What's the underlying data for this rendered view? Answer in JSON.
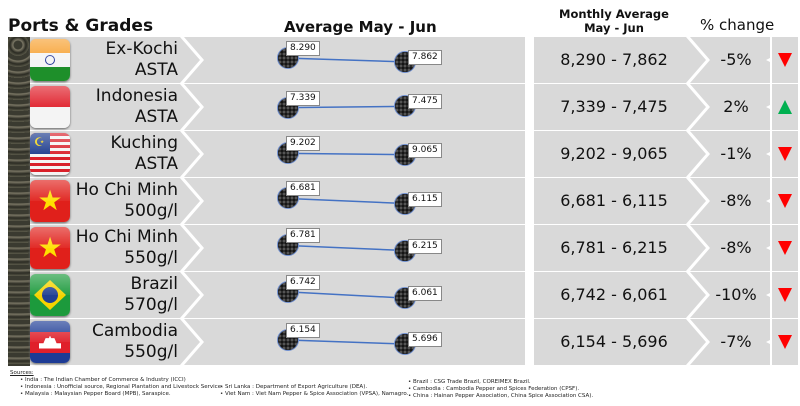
{
  "headers": {
    "ports": "Ports & Grades",
    "average": "Average May - Jun",
    "monthly_l1": "Monthly Average",
    "monthly_l2": "May - Jun",
    "pct": "% change"
  },
  "colors": {
    "down": "#ff0000",
    "up": "#00b050",
    "line": "#4472c4",
    "panel": "#d9d9d9"
  },
  "rows": [
    {
      "name": "Ex-Kochi",
      "grade": "ASTA",
      "flag": "india",
      "may": "8.290",
      "jun": "7.862",
      "mayv": 8290,
      "junv": 7862,
      "range": "8,290 - 7,862",
      "pct": "-5%",
      "trend": "down"
    },
    {
      "name": "Indonesia",
      "grade": "ASTA",
      "flag": "indonesia",
      "may": "7.339",
      "jun": "7.475",
      "mayv": 7339,
      "junv": 7475,
      "range": "7,339 - 7,475",
      "pct": "2%",
      "trend": "up"
    },
    {
      "name": "Kuching",
      "grade": "ASTA",
      "flag": "malaysia",
      "may": "9.202",
      "jun": "9.065",
      "mayv": 9202,
      "junv": 9065,
      "range": "9,202 - 9,065",
      "pct": "-1%",
      "trend": "down"
    },
    {
      "name": "Ho Chi Minh",
      "grade": "500g/l",
      "flag": "vietnam",
      "may": "6.681",
      "jun": "6.115",
      "mayv": 6681,
      "junv": 6115,
      "range": "6,681 - 6,115",
      "pct": "-8%",
      "trend": "down"
    },
    {
      "name": "Ho Chi Minh",
      "grade": "550g/l",
      "flag": "vietnam",
      "may": "6.781",
      "jun": "6.215",
      "mayv": 6781,
      "junv": 6215,
      "range": "6,781 - 6,215",
      "pct": "-8%",
      "trend": "down"
    },
    {
      "name": "Brazil",
      "grade": "570g/l",
      "flag": "brazil",
      "may": "6.742",
      "jun": "6.061",
      "mayv": 6742,
      "junv": 6061,
      "range": "6,742 - 6,061",
      "pct": "-10%",
      "trend": "down"
    },
    {
      "name": "Cambodia",
      "grade": "550g/l",
      "flag": "cambodia",
      "may": "6.154",
      "jun": "5.696",
      "mayv": 6154,
      "junv": 5696,
      "range": "6,154 - 5,696",
      "pct": "-7%",
      "trend": "down"
    }
  ],
  "sources": {
    "title": "Sources:",
    "col1": [
      "India : The Indian Chamber of Commerce & Industry (ICCI)",
      "Indonesia : Unofficial source, Regional Plantation and Livestock Service.",
      "Malaysia : Malaysian Pepper Board (MPB), Saraspice."
    ],
    "col2": [
      "Sri Lanka : Department of Export Agriculture (DEA).",
      "Viet Nam : Viet Nam Pepper & Spice Association (VPSA), Namagro."
    ],
    "col3": [
      "Brazil : CSG Trade Brazil, COREIMEX Brazil.",
      "Cambodia : Cambodia Pepper and Spices Federation (CPSF).",
      "China : Hainan Pepper Association, China Spice Association CSA)."
    ]
  }
}
